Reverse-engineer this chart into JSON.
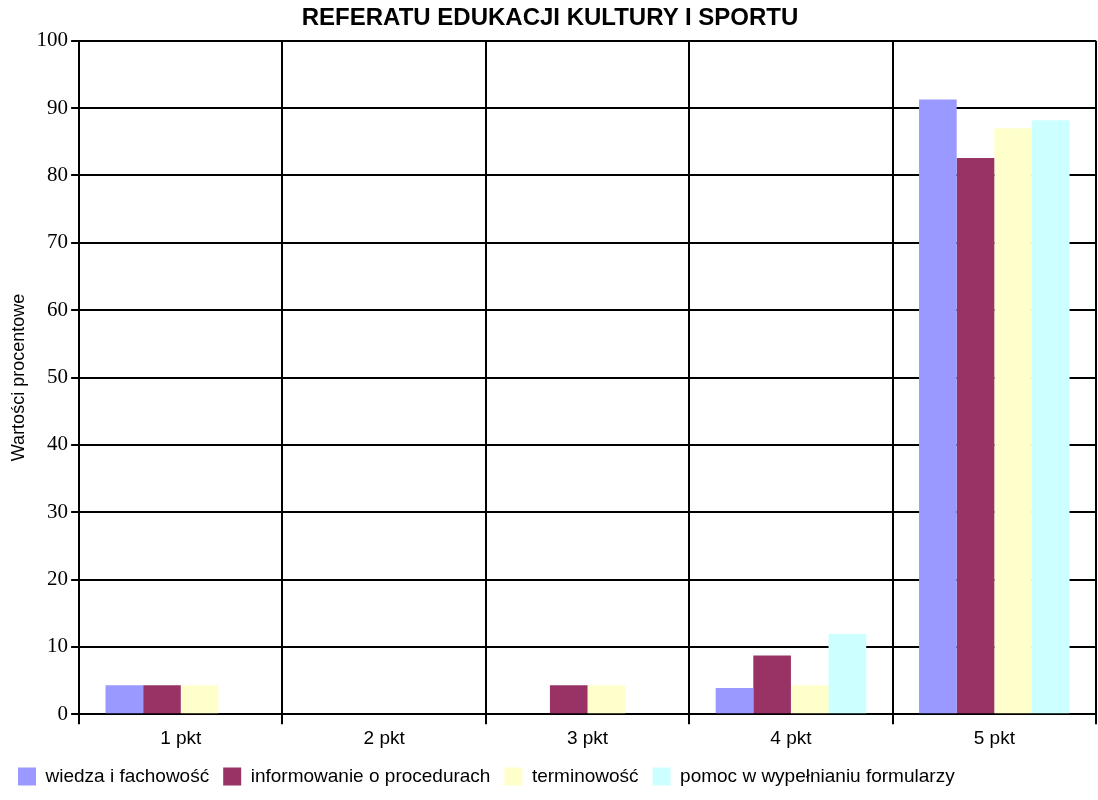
{
  "chart_data": {
    "type": "bar",
    "title": "REFERATU EDUKACJI KULTURY I SPORTU",
    "ylabel": "Wartości procentowe",
    "categories": [
      "1 pkt",
      "2 pkt",
      "3 pkt",
      "4 pkt",
      "5 pkt"
    ],
    "series": [
      {
        "name": "wiedza i fachowość",
        "color": "#9999ff",
        "values": [
          4.3,
          0,
          0,
          3.9,
          91.3
        ]
      },
      {
        "name": "informowanie o procedurach",
        "color": "#993366",
        "values": [
          4.3,
          0,
          4.3,
          8.7,
          82.6
        ]
      },
      {
        "name": "terminowość",
        "color": "#ffffcc",
        "values": [
          4.3,
          0,
          4.3,
          4.3,
          87
        ]
      },
      {
        "name": "pomoc w wypełnianiu formularzy",
        "color": "#ccffff",
        "values": [
          0,
          0,
          0,
          11.9,
          88.2
        ]
      }
    ],
    "ylim": [
      0,
      100
    ],
    "yticks": [
      0,
      10,
      20,
      30,
      40,
      50,
      60,
      70,
      80,
      90,
      100
    ],
    "grid": true,
    "legend": "bottom"
  }
}
